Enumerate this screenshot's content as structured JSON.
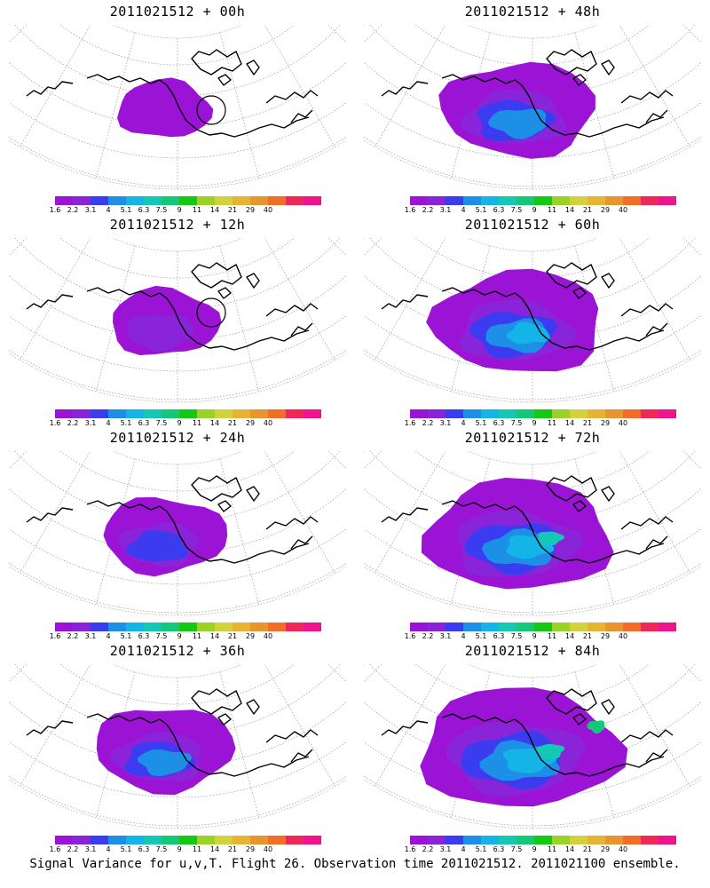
{
  "panels": [
    {
      "title": "2011021512 + 00h",
      "level": 0
    },
    {
      "title": "2011021512 + 12h",
      "level": 1
    },
    {
      "title": "2011021512 + 24h",
      "level": 2
    },
    {
      "title": "2011021512 + 36h",
      "level": 3
    },
    {
      "title": "2011021512 + 48h",
      "level": 4
    },
    {
      "title": "2011021512 + 60h",
      "level": 5
    },
    {
      "title": "2011021512 + 72h",
      "level": 6
    },
    {
      "title": "2011021512 + 84h",
      "level": 7
    }
  ],
  "colorbar": {
    "colors": [
      "#9b14d6",
      "#8a24d8",
      "#3b3bf0",
      "#1e8fe6",
      "#14b4e6",
      "#14c8b4",
      "#14c878",
      "#14c814",
      "#9bd228",
      "#d2d23c",
      "#e6b432",
      "#e6962d",
      "#f06e28",
      "#f0285a",
      "#f0148c"
    ],
    "labels": [
      "1.6",
      "2.2",
      "3.1",
      "4",
      "5.1",
      "6.3",
      "7.5",
      "9",
      "11",
      "14",
      "21",
      "29",
      "40"
    ]
  },
  "caption": "Signal Variance for u,v,T. Flight 26. Observation time 2011021512. 2011021100 ensemble."
}
